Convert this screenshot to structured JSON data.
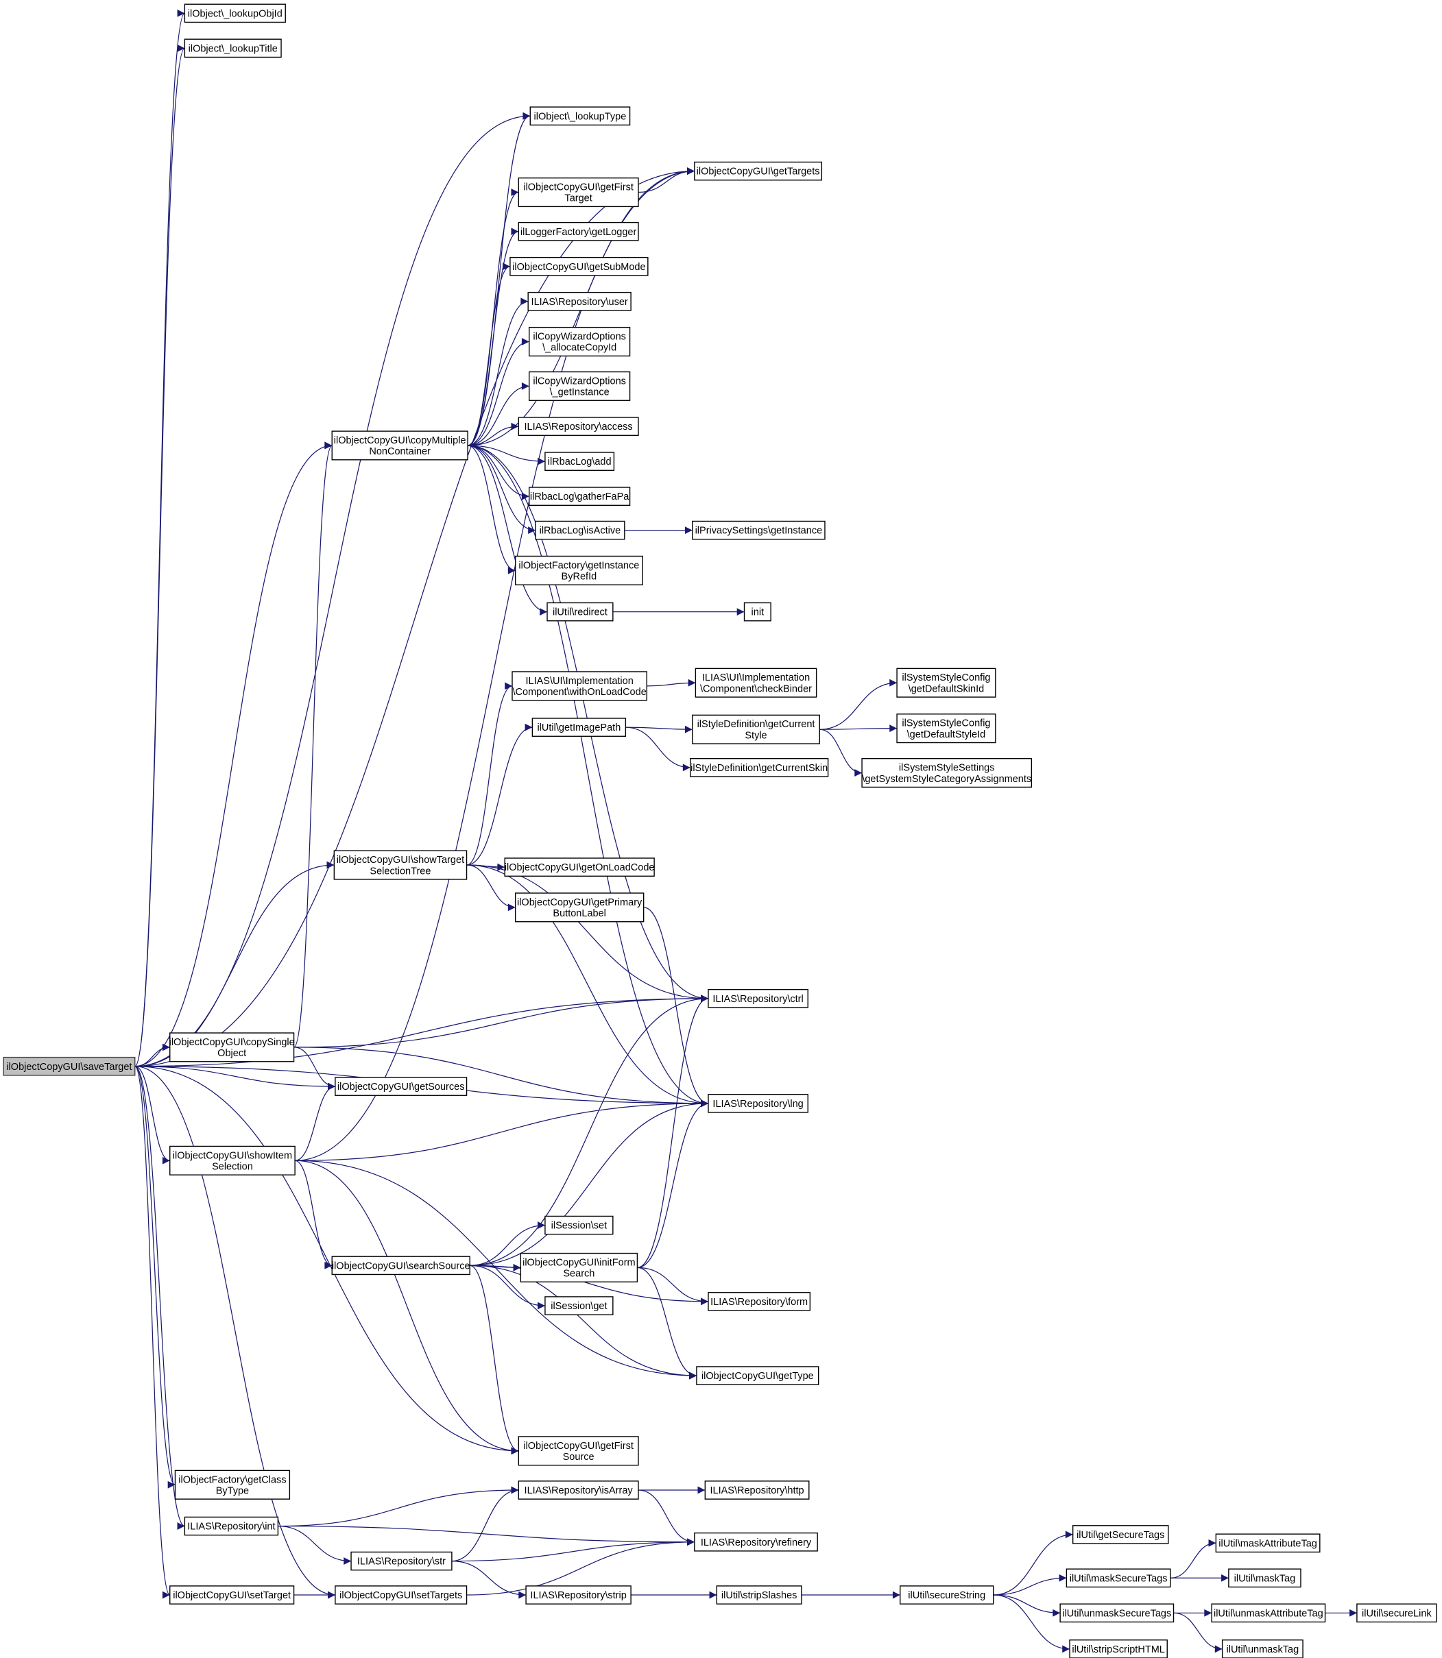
{
  "graph": {
    "type": "call-graph",
    "root": "save",
    "colors": {
      "edge": "#191970",
      "root_fill": "#bfbfbf",
      "node_fill": "#ffffff",
      "border": "#000000"
    },
    "nodes": {
      "save": [
        "ilObjectCopyGUI\\saveTarget"
      ],
      "lookupObjId": [
        "ilObject\\_lookupObjId"
      ],
      "lookupTitle": [
        "ilObject\\_lookupTitle"
      ],
      "lookupType": [
        "ilObject\\_lookupType"
      ],
      "getTargets": [
        "ilObjectCopyGUI\\getTargets"
      ],
      "getFirstTarget": [
        "ilObjectCopyGUI\\getFirst",
        "Target"
      ],
      "getLogger": [
        "ilLoggerFactory\\getLogger"
      ],
      "getSubMode": [
        "ilObjectCopyGUI\\getSubMode"
      ],
      "user": [
        "ILIAS\\Repository\\user"
      ],
      "allocateCopyId": [
        "ilCopyWizardOptions",
        "\\_allocateCopyId"
      ],
      "cwoGetInstance": [
        "ilCopyWizardOptions",
        "\\_getInstance"
      ],
      "access": [
        "ILIAS\\Repository\\access"
      ],
      "rbacAdd": [
        "ilRbacLog\\add"
      ],
      "gatherFaPa": [
        "ilRbacLog\\gatherFaPa"
      ],
      "isActive": [
        "ilRbacLog\\isActive"
      ],
      "privacyGetInstance": [
        "ilPrivacySettings\\getInstance"
      ],
      "getInstanceByRefId": [
        "ilObjectFactory\\getInstance",
        "ByRefId"
      ],
      "redirect": [
        "ilUtil\\redirect"
      ],
      "init": [
        "init"
      ],
      "copyMultiple": [
        "ilObjectCopyGUI\\copyMultiple",
        "NonContainer"
      ],
      "withOnLoadCode": [
        "ILIAS\\UI\\Implementation",
        "\\Component\\withOnLoadCode"
      ],
      "checkBinder": [
        "ILIAS\\UI\\Implementation",
        "\\Component\\checkBinder"
      ],
      "getImagePath": [
        "ilUtil\\getImagePath"
      ],
      "getCurrentStyle": [
        "ilStyleDefinition\\getCurrent",
        "Style"
      ],
      "getCurrentSkin": [
        "ilStyleDefinition\\getCurrentSkin"
      ],
      "getDefaultSkinId": [
        "ilSystemStyleConfig",
        "\\getDefaultSkinId"
      ],
      "getDefaultStyleId": [
        "ilSystemStyleConfig",
        "\\getDefaultStyleId"
      ],
      "getSystemStyleCat": [
        "ilSystemStyleSettings",
        "\\getSystemStyleCategoryAssignments"
      ],
      "showTargetTree": [
        "ilObjectCopyGUI\\showTarget",
        "SelectionTree"
      ],
      "getOnLoadCode": [
        "ilObjectCopyGUI\\getOnLoadCode"
      ],
      "getPrimaryButtonLabel": [
        "ilObjectCopyGUI\\getPrimary",
        "ButtonLabel"
      ],
      "ctrl": [
        "ILIAS\\Repository\\ctrl"
      ],
      "lng": [
        "ILIAS\\Repository\\lng"
      ],
      "copySingle": [
        "ilObjectCopyGUI\\copySingle",
        "Object"
      ],
      "getSources": [
        "ilObjectCopyGUI\\getSources"
      ],
      "showItemSelection": [
        "ilObjectCopyGUI\\showItem",
        "Selection"
      ],
      "sessionSet": [
        "ilSession\\set"
      ],
      "searchSource": [
        "ilObjectCopyGUI\\searchSource"
      ],
      "initFormSearch": [
        "ilObjectCopyGUI\\initForm",
        "Search"
      ],
      "sessionGet": [
        "ilSession\\get"
      ],
      "form": [
        "ILIAS\\Repository\\form"
      ],
      "getType": [
        "ilObjectCopyGUI\\getType"
      ],
      "getFirstSource": [
        "ilObjectCopyGUI\\getFirst",
        "Source"
      ],
      "getClassByType": [
        "ilObjectFactory\\getClass",
        "ByType"
      ],
      "isArray": [
        "ILIAS\\Repository\\isArray"
      ],
      "http": [
        "ILIAS\\Repository\\http"
      ],
      "int": [
        "ILIAS\\Repository\\int"
      ],
      "refinery": [
        "ILIAS\\Repository\\refinery"
      ],
      "str": [
        "ILIAS\\Repository\\str"
      ],
      "setTarget": [
        "ilObjectCopyGUI\\setTarget"
      ],
      "setTargets": [
        "ilObjectCopyGUI\\setTargets"
      ],
      "strip": [
        "ILIAS\\Repository\\strip"
      ],
      "stripSlashes": [
        "ilUtil\\stripSlashes"
      ],
      "secureString": [
        "ilUtil\\secureString"
      ],
      "getSecureTags": [
        "ilUtil\\getSecureTags"
      ],
      "maskSecureTags": [
        "ilUtil\\maskSecureTags"
      ],
      "unmaskSecureTags": [
        "ilUtil\\unmaskSecureTags"
      ],
      "stripScriptHTML": [
        "ilUtil\\stripScriptHTML"
      ],
      "maskAttributeTag": [
        "ilUtil\\maskAttributeTag"
      ],
      "maskTag": [
        "ilUtil\\maskTag"
      ],
      "unmaskAttributeTag": [
        "ilUtil\\unmaskAttributeTag"
      ],
      "secureLink": [
        "ilUtil\\secureLink"
      ],
      "unmaskTag": [
        "ilUtil\\unmaskTag"
      ]
    },
    "edges": [
      [
        "save",
        "lookupObjId"
      ],
      [
        "save",
        "lookupTitle"
      ],
      [
        "save",
        "lookupType"
      ],
      [
        "save",
        "getTargets"
      ],
      [
        "save",
        "copyMultiple"
      ],
      [
        "save",
        "showTargetTree"
      ],
      [
        "save",
        "ctrl"
      ],
      [
        "save",
        "copySingle"
      ],
      [
        "save",
        "getSources"
      ],
      [
        "save",
        "lng"
      ],
      [
        "save",
        "showItemSelection"
      ],
      [
        "save",
        "getFirstSource"
      ],
      [
        "save",
        "getClassByType"
      ],
      [
        "save",
        "int"
      ],
      [
        "save",
        "setTarget"
      ],
      [
        "save",
        "setTargets"
      ],
      [
        "copyMultiple",
        "lookupType"
      ],
      [
        "copyMultiple",
        "getTargets"
      ],
      [
        "copyMultiple",
        "getFirstTarget"
      ],
      [
        "copyMultiple",
        "getLogger"
      ],
      [
        "copyMultiple",
        "getSubMode"
      ],
      [
        "copyMultiple",
        "user"
      ],
      [
        "copyMultiple",
        "allocateCopyId"
      ],
      [
        "copyMultiple",
        "cwoGetInstance"
      ],
      [
        "copyMultiple",
        "access"
      ],
      [
        "copyMultiple",
        "rbacAdd"
      ],
      [
        "copyMultiple",
        "gatherFaPa"
      ],
      [
        "copyMultiple",
        "isActive"
      ],
      [
        "copyMultiple",
        "getInstanceByRefId"
      ],
      [
        "copyMultiple",
        "redirect"
      ],
      [
        "copyMultiple",
        "ctrl"
      ],
      [
        "copyMultiple",
        "lng"
      ],
      [
        "getFirstTarget",
        "getTargets"
      ],
      [
        "isActive",
        "privacyGetInstance"
      ],
      [
        "redirect",
        "init"
      ],
      [
        "showTargetTree",
        "withOnLoadCode"
      ],
      [
        "showTargetTree",
        "getImagePath"
      ],
      [
        "showTargetTree",
        "getOnLoadCode"
      ],
      [
        "showTargetTree",
        "getPrimaryButtonLabel"
      ],
      [
        "showTargetTree",
        "ctrl"
      ],
      [
        "showTargetTree",
        "lng"
      ],
      [
        "withOnLoadCode",
        "checkBinder"
      ],
      [
        "getImagePath",
        "getCurrentStyle"
      ],
      [
        "getImagePath",
        "getCurrentSkin"
      ],
      [
        "getCurrentStyle",
        "getDefaultSkinId"
      ],
      [
        "getCurrentStyle",
        "getDefaultStyleId"
      ],
      [
        "getCurrentStyle",
        "getSystemStyleCat"
      ],
      [
        "getPrimaryButtonLabel",
        "lng"
      ],
      [
        "copySingle",
        "copyMultiple"
      ],
      [
        "copySingle",
        "ctrl"
      ],
      [
        "copySingle",
        "getSources"
      ],
      [
        "copySingle",
        "lng"
      ],
      [
        "showItemSelection",
        "getTargets"
      ],
      [
        "showItemSelection",
        "getSources"
      ],
      [
        "showItemSelection",
        "lng"
      ],
      [
        "showItemSelection",
        "searchSource"
      ],
      [
        "showItemSelection",
        "getType"
      ],
      [
        "showItemSelection",
        "getFirstSource"
      ],
      [
        "searchSource",
        "ctrl"
      ],
      [
        "searchSource",
        "lng"
      ],
      [
        "searchSource",
        "sessionSet"
      ],
      [
        "searchSource",
        "initFormSearch"
      ],
      [
        "searchSource",
        "sessionGet"
      ],
      [
        "searchSource",
        "form"
      ],
      [
        "searchSource",
        "getType"
      ],
      [
        "searchSource",
        "getFirstSource"
      ],
      [
        "initFormSearch",
        "ctrl"
      ],
      [
        "initFormSearch",
        "lng"
      ],
      [
        "initFormSearch",
        "form"
      ],
      [
        "initFormSearch",
        "getType"
      ],
      [
        "int",
        "isArray"
      ],
      [
        "int",
        "refinery"
      ],
      [
        "int",
        "str"
      ],
      [
        "str",
        "isArray"
      ],
      [
        "str",
        "refinery"
      ],
      [
        "str",
        "strip"
      ],
      [
        "isArray",
        "http"
      ],
      [
        "isArray",
        "refinery"
      ],
      [
        "setTarget",
        "setTargets"
      ],
      [
        "setTargets",
        "refinery"
      ],
      [
        "strip",
        "stripSlashes"
      ],
      [
        "stripSlashes",
        "secureString"
      ],
      [
        "secureString",
        "getSecureTags"
      ],
      [
        "secureString",
        "maskSecureTags"
      ],
      [
        "secureString",
        "unmaskSecureTags"
      ],
      [
        "secureString",
        "stripScriptHTML"
      ],
      [
        "maskSecureTags",
        "maskAttributeTag"
      ],
      [
        "maskSecureTags",
        "maskTag"
      ],
      [
        "unmaskSecureTags",
        "unmaskAttributeTag"
      ],
      [
        "unmaskSecureTags",
        "unmaskTag"
      ],
      [
        "unmaskAttributeTag",
        "secureLink"
      ]
    ]
  }
}
